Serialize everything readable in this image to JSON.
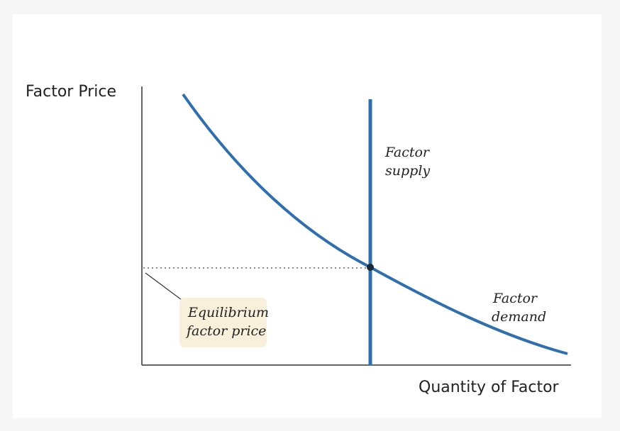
{
  "axes": {
    "y_label": "Factor Price",
    "x_label": "Quantity of Factor"
  },
  "curves": {
    "supply": {
      "label": [
        "Factor",
        "supply"
      ]
    },
    "demand": {
      "label": [
        "Factor",
        "demand"
      ]
    }
  },
  "annotation": {
    "label": [
      "Equilibrium",
      "factor price"
    ]
  }
}
